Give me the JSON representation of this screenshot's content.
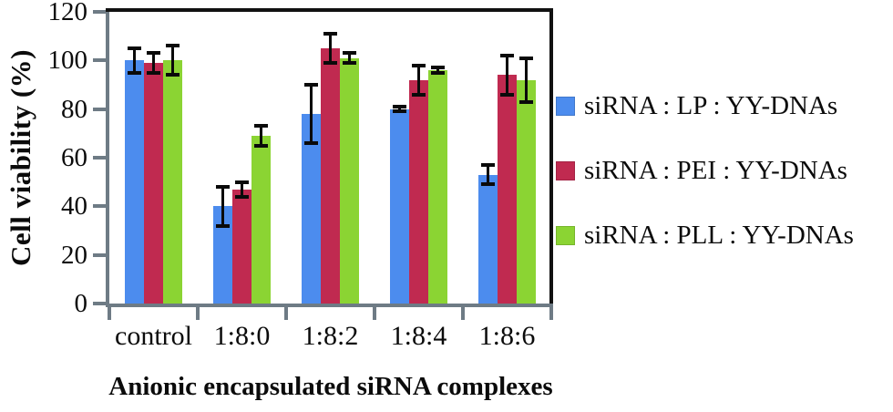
{
  "chart_data": {
    "type": "bar",
    "title": "",
    "xlabel": "Anionic encapsulated siRNA complexes",
    "ylabel": "Cell viability (%)",
    "categories": [
      "control",
      "1:8:0",
      "1:8:2",
      "1:8:4",
      "1:8:6"
    ],
    "series": [
      {
        "name": "siRNA : LP : YY-DNAs",
        "color": "#4C8CEE",
        "values": [
          100,
          40,
          78,
          80,
          53
        ],
        "errors": [
          5,
          8,
          12,
          1,
          4
        ]
      },
      {
        "name": "siRNA : PEI : YY-DNAs",
        "color": "#C02A50",
        "values": [
          99,
          47,
          105,
          92,
          94
        ],
        "errors": [
          4,
          3,
          6,
          6,
          8
        ]
      },
      {
        "name": "siRNA : PLL : YY-DNAs",
        "color": "#8BD433",
        "values": [
          100,
          69,
          101,
          96,
          92
        ],
        "errors": [
          6,
          4,
          2,
          1,
          9
        ]
      }
    ],
    "yticks": [
      0,
      20,
      40,
      60,
      80,
      100,
      120
    ],
    "ylim": [
      0,
      120
    ],
    "grid": false,
    "legend_position": "right",
    "error_bar_color": "#0a0a0a",
    "axis_color": "#6E7B85",
    "frame_color": "#111111"
  }
}
